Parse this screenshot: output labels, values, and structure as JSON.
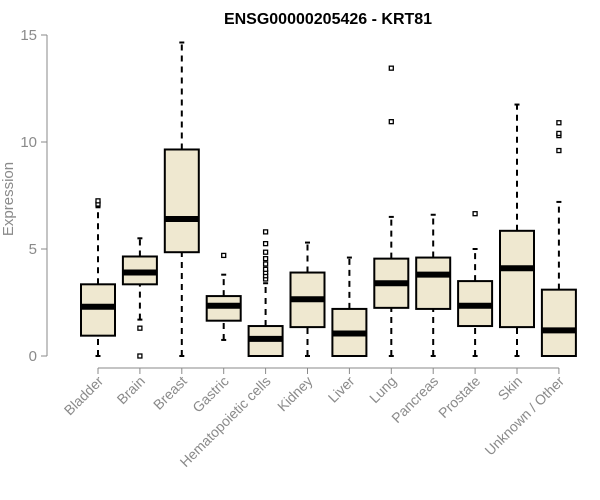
{
  "chart_data": {
    "type": "box",
    "title": "ENSG00000205426 - KRT81",
    "xlabel": "",
    "ylabel": "Expression",
    "ylim": [
      0,
      15
    ],
    "yticks": [
      0,
      5,
      10,
      15
    ],
    "grid": false,
    "legend": "none",
    "box_fill_color": "#efe8d0",
    "box_stroke_color": "#000000",
    "median_color": "#000000",
    "axis_color": "#8a8a8a",
    "categories": [
      "Bladder",
      "Brain",
      "Breast",
      "Gastric",
      "Hematopoietic cells",
      "Kidney",
      "Liver",
      "Lung",
      "Pancreas",
      "Prostate",
      "Skin",
      "Unknown / Other"
    ],
    "boxes": [
      {
        "category": "Bladder",
        "whisker_low": 0.0,
        "q1": 0.95,
        "median": 2.3,
        "q3": 3.35,
        "whisker_high": 6.95,
        "outliers": [
          7.1,
          7.25
        ]
      },
      {
        "category": "Brain",
        "whisker_low": 1.7,
        "q1": 3.35,
        "median": 3.9,
        "q3": 4.65,
        "whisker_high": 5.5,
        "outliers": [
          1.3,
          0.0
        ]
      },
      {
        "category": "Breast",
        "whisker_low": 0.0,
        "q1": 4.85,
        "median": 6.4,
        "q3": 9.65,
        "whisker_high": 14.65,
        "outliers": []
      },
      {
        "category": "Gastric",
        "whisker_low": 0.75,
        "q1": 1.65,
        "median": 2.35,
        "q3": 2.8,
        "whisker_high": 3.8,
        "outliers": [
          4.7
        ]
      },
      {
        "category": "Hematopoietic cells",
        "whisker_low": 0.0,
        "q1": 0.0,
        "median": 0.8,
        "q3": 1.4,
        "whisker_high": 3.4,
        "outliers": [
          3.6,
          3.75,
          3.9,
          4.05,
          4.3,
          4.55,
          4.85,
          5.25,
          5.8
        ]
      },
      {
        "category": "Kidney",
        "whisker_low": 0.0,
        "q1": 1.35,
        "median": 2.65,
        "q3": 3.9,
        "whisker_high": 5.3,
        "outliers": []
      },
      {
        "category": "Liver",
        "whisker_low": 0.0,
        "q1": 0.0,
        "median": 1.05,
        "q3": 2.2,
        "whisker_high": 4.6,
        "outliers": []
      },
      {
        "category": "Lung",
        "whisker_low": 0.0,
        "q1": 2.25,
        "median": 3.4,
        "q3": 4.55,
        "whisker_high": 6.5,
        "outliers": [
          10.95,
          13.45
        ]
      },
      {
        "category": "Pancreas",
        "whisker_low": 0.0,
        "q1": 2.2,
        "median": 3.8,
        "q3": 4.6,
        "whisker_high": 6.6,
        "outliers": []
      },
      {
        "category": "Prostate",
        "whisker_low": 0.0,
        "q1": 1.4,
        "median": 2.35,
        "q3": 3.5,
        "whisker_high": 5.0,
        "outliers": [
          6.65
        ]
      },
      {
        "category": "Skin",
        "whisker_low": 0.0,
        "q1": 1.35,
        "median": 4.1,
        "q3": 5.85,
        "whisker_high": 11.75,
        "outliers": []
      },
      {
        "category": "Unknown / Other",
        "whisker_low": 0.0,
        "q1": 0.0,
        "median": 1.2,
        "q3": 3.1,
        "whisker_high": 7.2,
        "outliers": [
          9.6,
          10.3,
          10.4,
          10.9
        ]
      }
    ]
  }
}
